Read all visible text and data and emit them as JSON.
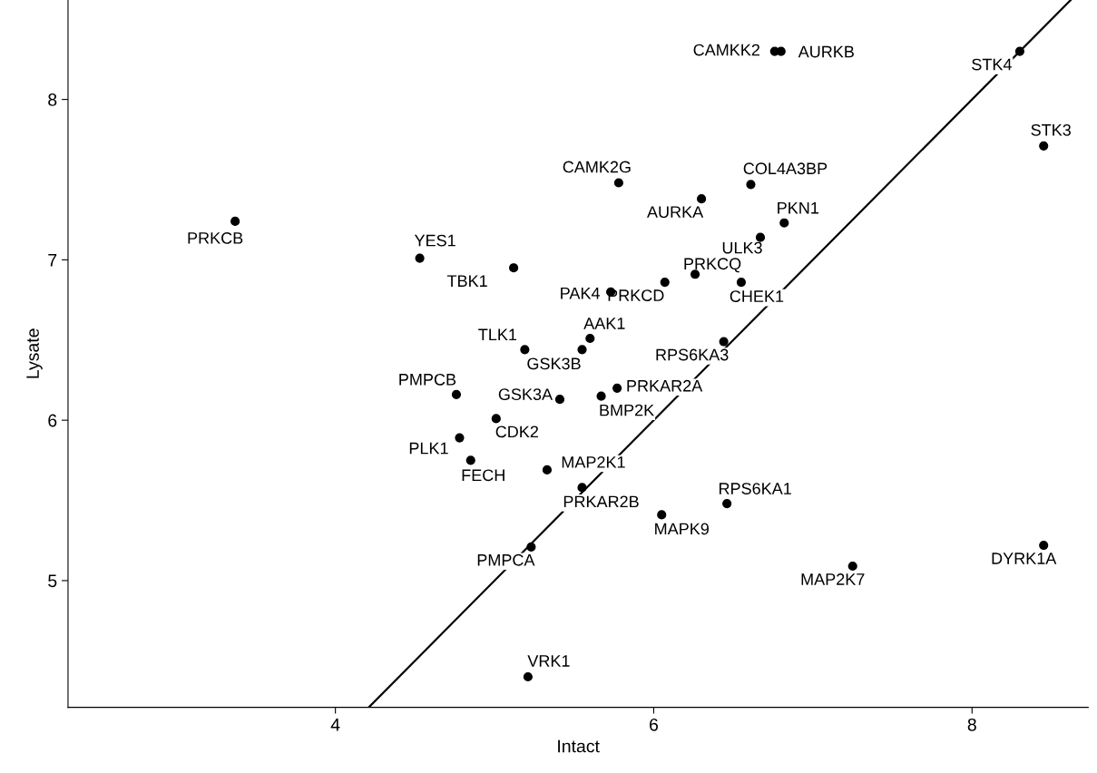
{
  "chart_data": {
    "type": "scatter",
    "xlabel": "Intact",
    "ylabel": "Lysate",
    "xlim": [
      2.32,
      8.73
    ],
    "ylim": [
      4.21,
      8.62
    ],
    "xticks": [
      4,
      6,
      8
    ],
    "yticks": [
      5,
      6,
      7,
      8
    ],
    "grid": false,
    "legend": false,
    "series": [
      {
        "marker": "circle",
        "color": "#000000",
        "x": [
          3.37,
          4.53,
          5.12,
          5.78,
          6.76,
          6.8,
          8.3,
          8.45,
          6.61,
          6.3,
          6.82,
          6.67,
          6.26,
          6.07,
          5.73,
          6.55,
          5.6,
          5.19,
          5.55,
          6.44,
          4.76,
          5.41,
          5.67,
          5.77,
          5.01,
          4.78,
          4.85,
          5.33,
          6.46,
          5.55,
          6.05,
          5.23,
          7.25,
          8.45,
          5.21
        ],
        "values": [
          7.24,
          7.01,
          6.95,
          7.48,
          8.3,
          8.3,
          8.3,
          7.71,
          7.47,
          7.38,
          7.23,
          7.14,
          6.91,
          6.86,
          6.8,
          6.86,
          6.51,
          6.44,
          6.44,
          6.49,
          6.16,
          6.13,
          6.15,
          6.2,
          6.01,
          5.89,
          5.75,
          5.69,
          5.48,
          5.58,
          5.41,
          5.21,
          5.09,
          5.22,
          4.4
        ]
      },
      {
        "type": "line",
        "color": "#000000",
        "line_style": "solid",
        "x": [
          4.21,
          8.62
        ],
        "values": [
          4.21,
          8.62
        ]
      }
    ],
    "annotations": [
      {
        "text": "PRKCB",
        "x": 3.37,
        "y": 7.24
      },
      {
        "text": "YES1",
        "x": 4.53,
        "y": 7.01
      },
      {
        "text": "TBK1",
        "x": 5.12,
        "y": 6.95
      },
      {
        "text": "CAMK2G",
        "x": 5.78,
        "y": 7.48
      },
      {
        "text": "CAMKK2",
        "x": 6.76,
        "y": 8.3
      },
      {
        "text": "AURKB",
        "x": 6.8,
        "y": 8.3
      },
      {
        "text": "STK4",
        "x": 8.3,
        "y": 8.3
      },
      {
        "text": "STK3",
        "x": 8.45,
        "y": 7.71
      },
      {
        "text": "COL4A3BP",
        "x": 6.61,
        "y": 7.47
      },
      {
        "text": "AURKA",
        "x": 6.3,
        "y": 7.38
      },
      {
        "text": "PKN1",
        "x": 6.82,
        "y": 7.23
      },
      {
        "text": "ULK3",
        "x": 6.67,
        "y": 7.14
      },
      {
        "text": "PRKCQ",
        "x": 6.26,
        "y": 6.91
      },
      {
        "text": "PRKCD",
        "x": 6.07,
        "y": 6.86
      },
      {
        "text": "PAK4",
        "x": 5.73,
        "y": 6.8
      },
      {
        "text": "CHEK1",
        "x": 6.55,
        "y": 6.86
      },
      {
        "text": "AAK1",
        "x": 5.6,
        "y": 6.51
      },
      {
        "text": "TLK1",
        "x": 5.19,
        "y": 6.44
      },
      {
        "text": "GSK3B",
        "x": 5.55,
        "y": 6.44
      },
      {
        "text": "RPS6KA3",
        "x": 6.44,
        "y": 6.49
      },
      {
        "text": "PMPCB",
        "x": 4.76,
        "y": 6.16
      },
      {
        "text": "GSK3A",
        "x": 5.41,
        "y": 6.13
      },
      {
        "text": "BMP2K",
        "x": 5.67,
        "y": 6.15
      },
      {
        "text": "PRKAR2A",
        "x": 5.77,
        "y": 6.2
      },
      {
        "text": "CDK2",
        "x": 5.01,
        "y": 6.01
      },
      {
        "text": "PLK1",
        "x": 4.78,
        "y": 5.89
      },
      {
        "text": "FECH",
        "x": 4.85,
        "y": 5.75
      },
      {
        "text": "MAP2K1",
        "x": 5.33,
        "y": 5.69
      },
      {
        "text": "RPS6KA1",
        "x": 6.46,
        "y": 5.48
      },
      {
        "text": "PRKAR2B",
        "x": 5.55,
        "y": 5.58
      },
      {
        "text": "MAPK9",
        "x": 6.05,
        "y": 5.41
      },
      {
        "text": "PMPCA",
        "x": 5.23,
        "y": 5.21
      },
      {
        "text": "MAP2K7",
        "x": 7.25,
        "y": 5.09
      },
      {
        "text": "DYRK1A",
        "x": 8.45,
        "y": 5.22
      },
      {
        "text": "VRK1",
        "x": 5.21,
        "y": 4.4
      }
    ]
  }
}
